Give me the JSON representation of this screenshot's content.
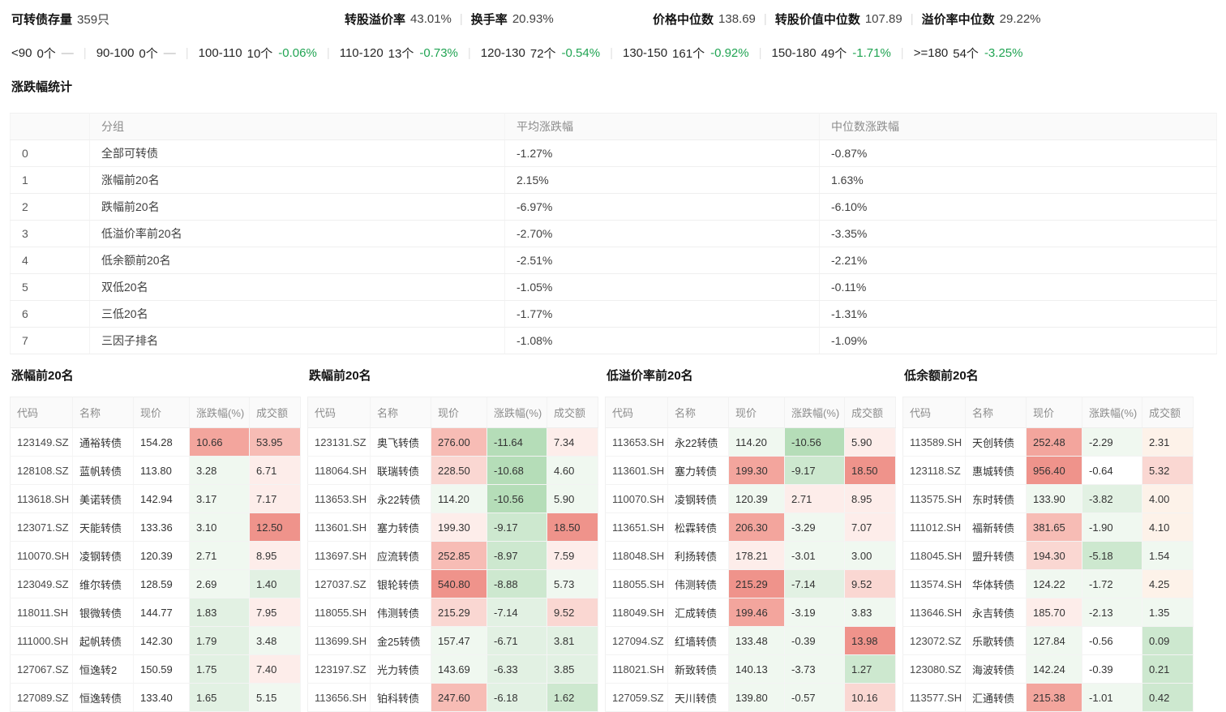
{
  "colors": {
    "positive_green": "#21a453",
    "dash_gray": "#b3b3b3"
  },
  "header": {
    "stock_label": "可转债存量",
    "stock_value": "359只",
    "metrics": [
      {
        "label": "转股溢价率",
        "value": "43.01%"
      },
      {
        "label": "换手率",
        "value": "20.93%"
      }
    ],
    "medians": [
      {
        "label": "价格中位数",
        "value": "138.69"
      },
      {
        "label": "转股价值中位数",
        "value": "107.89"
      },
      {
        "label": "溢价率中位数",
        "value": "29.22%"
      }
    ]
  },
  "distribution": [
    {
      "range": "<90",
      "count": "0个",
      "pct": "—"
    },
    {
      "range": "90-100",
      "count": "0个",
      "pct": "—"
    },
    {
      "range": "100-110",
      "count": "10个",
      "pct": "-0.06%"
    },
    {
      "range": "110-120",
      "count": "13个",
      "pct": "-0.73%"
    },
    {
      "range": "120-130",
      "count": "72个",
      "pct": "-0.54%"
    },
    {
      "range": "130-150",
      "count": "161个",
      "pct": "-0.92%"
    },
    {
      "range": "150-180",
      "count": "49个",
      "pct": "-1.71%"
    },
    {
      "range": ">=180",
      "count": "54个",
      "pct": "-3.25%"
    }
  ],
  "stats": {
    "title": "涨跌幅统计",
    "columns": [
      "",
      "分组",
      "平均涨跌幅",
      "中位数涨跌幅"
    ],
    "rows": [
      [
        "0",
        "全部可转债",
        "-1.27%",
        "-0.87%"
      ],
      [
        "1",
        "涨幅前20名",
        "2.15%",
        "1.63%"
      ],
      [
        "2",
        "跌幅前20名",
        "-6.97%",
        "-6.10%"
      ],
      [
        "3",
        "低溢价率前20名",
        "-2.70%",
        "-3.35%"
      ],
      [
        "4",
        "低余额前20名",
        "-2.51%",
        "-2.21%"
      ],
      [
        "5",
        "双低20名",
        "-1.05%",
        "-0.11%"
      ],
      [
        "6",
        "三低20名",
        "-1.77%",
        "-1.31%"
      ],
      [
        "7",
        "三因子排名",
        "-1.08%",
        "-1.09%"
      ]
    ]
  },
  "rank_tables": [
    {
      "key": "gainers",
      "title": "涨幅前20名",
      "columns": [
        "代码",
        "名称",
        "现价",
        "涨跌幅(%)",
        "成交额"
      ],
      "rows": [
        [
          "123149.SZ",
          "通裕转债",
          "154.28",
          "10.66",
          "53.95",
          "",
          "#f3a59d",
          "#f7bcb5"
        ],
        [
          "128108.SZ",
          "蓝帆转债",
          "113.80",
          "3.28",
          "6.71",
          "",
          "#f0f8f0",
          "#fdedea"
        ],
        [
          "113618.SH",
          "美诺转债",
          "142.94",
          "3.17",
          "7.17",
          "",
          "#f0f8f0",
          "#fdedea"
        ],
        [
          "123071.SZ",
          "天能转债",
          "133.36",
          "3.10",
          "12.50",
          "",
          "#f0f8f0",
          "#ef938b"
        ],
        [
          "110070.SH",
          "凌钢转债",
          "120.39",
          "2.71",
          "8.95",
          "",
          "#f0f8f0",
          "#fdedea"
        ],
        [
          "123049.SZ",
          "维尔转债",
          "128.59",
          "2.69",
          "1.40",
          "",
          "#f0f8f0",
          "#e2f1e3"
        ],
        [
          "118011.SH",
          "银微转债",
          "144.77",
          "1.83",
          "7.95",
          "",
          "#e2f1e3",
          "#fdedea"
        ],
        [
          "111000.SH",
          "起帆转债",
          "142.30",
          "1.79",
          "3.48",
          "",
          "#e2f1e3",
          "#f0f8f0"
        ],
        [
          "127067.SZ",
          "恒逸转2",
          "150.59",
          "1.75",
          "7.40",
          "",
          "#e2f1e3",
          "#fdedea"
        ],
        [
          "127089.SZ",
          "恒逸转债",
          "133.40",
          "1.65",
          "5.15",
          "",
          "#e2f1e3",
          "#f0f8f0"
        ]
      ]
    },
    {
      "key": "losers",
      "title": "跌幅前20名",
      "columns": [
        "代码",
        "名称",
        "现价",
        "涨跌幅(%)",
        "成交额"
      ],
      "rows": [
        [
          "123131.SZ",
          "奥飞转债",
          "276.00",
          "-11.64",
          "7.34",
          "#f7bcb5",
          "#b5ddb8",
          "#fdedea"
        ],
        [
          "118064.SH",
          "联瑞转债",
          "228.50",
          "-10.68",
          "4.60",
          "#fad7d2",
          "#b5ddb8",
          "#f0f8f0"
        ],
        [
          "113653.SH",
          "永22转债",
          "114.20",
          "-10.56",
          "5.90",
          "#f0f8f0",
          "#b5ddb8",
          "#f0f8f0"
        ],
        [
          "113601.SH",
          "塞力转债",
          "199.30",
          "-9.17",
          "18.50",
          "#fdedea",
          "#cde8cf",
          "#ef938b"
        ],
        [
          "113697.SH",
          "应流转债",
          "252.85",
          "-8.97",
          "7.59",
          "#f7bcb5",
          "#cde8cf",
          "#fdedea"
        ],
        [
          "127037.SZ",
          "银轮转债",
          "540.80",
          "-8.88",
          "5.73",
          "#ef938b",
          "#cde8cf",
          "#f0f8f0"
        ],
        [
          "118055.SH",
          "伟测转债",
          "215.29",
          "-7.14",
          "9.52",
          "#fad7d2",
          "#e2f1e3",
          "#fad7d2"
        ],
        [
          "113699.SH",
          "金25转债",
          "157.47",
          "-6.71",
          "3.81",
          "#f0f8f0",
          "#e2f1e3",
          "#e2f1e3"
        ],
        [
          "123197.SZ",
          "光力转债",
          "143.69",
          "-6.33",
          "3.85",
          "#f0f8f0",
          "#e2f1e3",
          "#e2f1e3"
        ],
        [
          "113656.SH",
          "铂科转债",
          "247.60",
          "-6.18",
          "1.62",
          "#f7bcb5",
          "#e2f1e3",
          "#cde8cf"
        ]
      ]
    },
    {
      "key": "low_premium",
      "title": "低溢价率前20名",
      "columns": [
        "代码",
        "名称",
        "现价",
        "涨跌幅(%)",
        "成交额"
      ],
      "rows": [
        [
          "113653.SH",
          "永22转债",
          "114.20",
          "-10.56",
          "5.90",
          "#f0f8f0",
          "#b5ddb8",
          "#fdedea"
        ],
        [
          "113601.SH",
          "塞力转债",
          "199.30",
          "-9.17",
          "18.50",
          "#f3a59d",
          "#cde8cf",
          "#ef938b"
        ],
        [
          "110070.SH",
          "凌钢转债",
          "120.39",
          "2.71",
          "8.95",
          "#f0f8f0",
          "#fdedea",
          "#fdedea"
        ],
        [
          "113651.SH",
          "松霖转债",
          "206.30",
          "-3.29",
          "7.07",
          "#f3a59d",
          "#f0f8f0",
          "#fdedea"
        ],
        [
          "118048.SH",
          "利扬转债",
          "178.21",
          "-3.01",
          "3.00",
          "#fdedea",
          "#f0f8f0",
          "#f0f8f0"
        ],
        [
          "118055.SH",
          "伟测转债",
          "215.29",
          "-7.14",
          "9.52",
          "#ef938b",
          "#e2f1e3",
          "#fad7d2"
        ],
        [
          "118049.SH",
          "汇成转债",
          "199.46",
          "-3.19",
          "3.83",
          "#f3a59d",
          "#f0f8f0",
          "#f0f8f0"
        ],
        [
          "127094.SZ",
          "红墙转债",
          "133.48",
          "-0.39",
          "13.98",
          "#f0f8f0",
          "#f0f8f0",
          "#ef938b"
        ],
        [
          "118021.SH",
          "新致转债",
          "140.13",
          "-3.73",
          "1.27",
          "#f0f8f0",
          "#f0f8f0",
          "#cde8cf"
        ],
        [
          "127059.SZ",
          "天川转债",
          "139.80",
          "-0.57",
          "10.16",
          "#f0f8f0",
          "#f0f8f0",
          "#fad7d2"
        ]
      ]
    },
    {
      "key": "low_balance",
      "title": "低余额前20名",
      "columns": [
        "代码",
        "名称",
        "现价",
        "涨跌幅(%)",
        "成交额"
      ],
      "rows": [
        [
          "113589.SH",
          "天创转债",
          "252.48",
          "-2.29",
          "2.31",
          "#f3a59d",
          "#f0f8f0",
          "#fdf2e9"
        ],
        [
          "123118.SZ",
          "惠城转债",
          "956.40",
          "-0.64",
          "5.32",
          "#ef938b",
          "",
          "#fad7d2"
        ],
        [
          "113575.SH",
          "东时转债",
          "133.90",
          "-3.82",
          "4.00",
          "#f0f8f0",
          "#e2f1e3",
          "#fdf2e9"
        ],
        [
          "111012.SH",
          "福新转债",
          "381.65",
          "-1.90",
          "4.10",
          "#f7bcb5",
          "#f0f8f0",
          "#fdf2e9"
        ],
        [
          "118045.SH",
          "盟升转债",
          "194.30",
          "-5.18",
          "1.54",
          "#fad7d2",
          "#cde8cf",
          "#f0f8f0"
        ],
        [
          "113574.SH",
          "华体转债",
          "124.22",
          "-1.72",
          "4.25",
          "#f0f8f0",
          "#f0f8f0",
          "#fdf2e9"
        ],
        [
          "113646.SH",
          "永吉转债",
          "185.70",
          "-2.13",
          "1.35",
          "#fdedea",
          "#f0f8f0",
          "#f0f8f0"
        ],
        [
          "123072.SZ",
          "乐歌转债",
          "127.84",
          "-0.56",
          "0.09",
          "#f0f8f0",
          "",
          "#cde8cf"
        ],
        [
          "123080.SZ",
          "海波转债",
          "142.24",
          "-0.39",
          "0.21",
          "#f0f8f0",
          "",
          "#cde8cf"
        ],
        [
          "113577.SH",
          "汇通转债",
          "215.38",
          "-1.01",
          "0.42",
          "#f3a59d",
          "#f0f8f0",
          "#cde8cf"
        ]
      ]
    }
  ]
}
